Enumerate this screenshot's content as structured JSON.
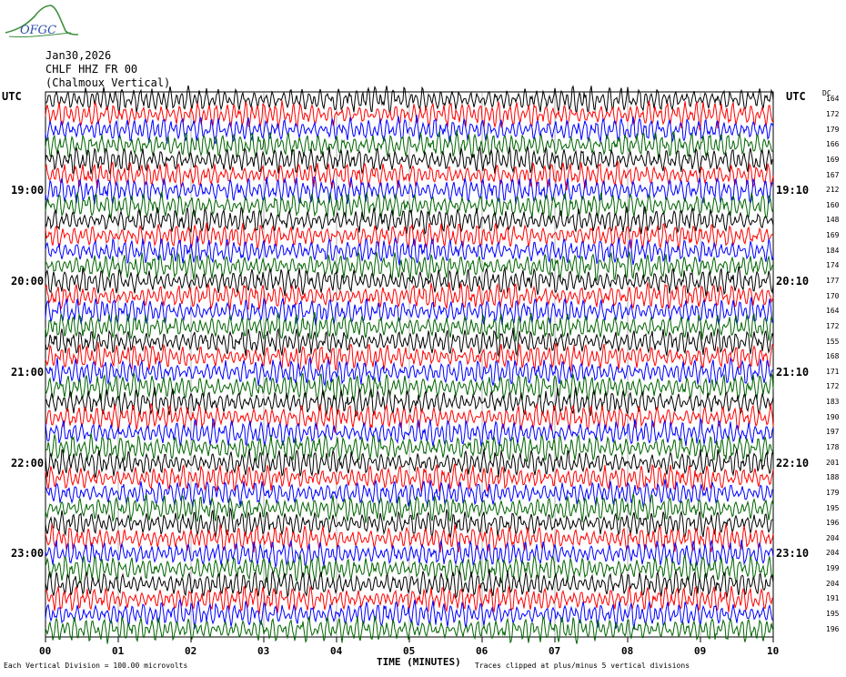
{
  "logo": {
    "text": "OFGC"
  },
  "header": {
    "date": "Jan30,2026",
    "channel": "CHLF HHZ FR 00",
    "station": "(Chalmoux Vertical)"
  },
  "utc_left": "UTC",
  "utc_right": "UTC",
  "dc_header": "DC",
  "chart_data": {
    "type": "line",
    "xlabel": "TIME (MINUTES)",
    "xticks": [
      "00",
      "01",
      "02",
      "03",
      "04",
      "05",
      "06",
      "07",
      "08",
      "09",
      "10"
    ],
    "xlim": [
      0,
      10
    ],
    "left_time_labels": [
      {
        "label": "19:00",
        "row": 6
      },
      {
        "label": "20:00",
        "row": 12
      },
      {
        "label": "21:00",
        "row": 18
      },
      {
        "label": "22:00",
        "row": 24
      },
      {
        "label": "23:00",
        "row": 30
      }
    ],
    "right_time_labels": [
      {
        "label": "19:10",
        "row": 6
      },
      {
        "label": "20:10",
        "row": 12
      },
      {
        "label": "21:10",
        "row": 18
      },
      {
        "label": "22:10",
        "row": 24
      },
      {
        "label": "23:10",
        "row": 30
      }
    ],
    "trace_colors": [
      "#000000",
      "#ff0000",
      "#0000ff",
      "#006400"
    ],
    "dc_offsets": [
      "164",
      "172",
      "179",
      "166",
      "169",
      "167",
      "212",
      "160",
      "148",
      "169",
      "184",
      "174",
      "177",
      "170",
      "164",
      "172",
      "155",
      "168",
      "171",
      "172",
      "183",
      "190",
      "197",
      "178",
      "201",
      "188",
      "179",
      "195",
      "196",
      "204",
      "204",
      "199",
      "204",
      "191",
      "195",
      "196"
    ],
    "grid": true
  },
  "footer": {
    "scale_note": "Each Vertical Division =  100.00 microvolts",
    "clip_note": "Traces clipped at plus/minus 5 vertical divisions"
  }
}
